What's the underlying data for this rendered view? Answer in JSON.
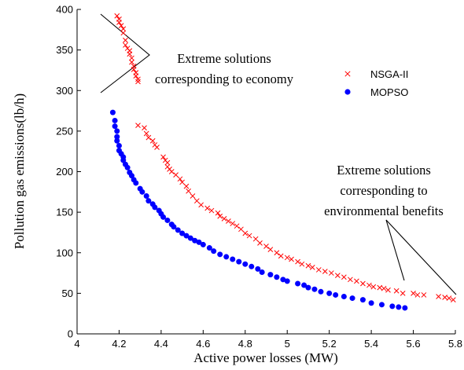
{
  "chart_data": {
    "type": "scatter",
    "xlabel": "Active power losses (MW)",
    "ylabel": "Pollution gas emissions(lb/h)",
    "xlim": [
      4,
      5.8
    ],
    "ylim": [
      0,
      400
    ],
    "xticks": [
      "4",
      "4.2",
      "4.4",
      "4.6",
      "4.8",
      "5",
      "5.2",
      "5.4",
      "5.6",
      "5.8"
    ],
    "yticks": [
      "0",
      "50",
      "100",
      "150",
      "200",
      "250",
      "300",
      "350",
      "400"
    ],
    "grid": false,
    "legend_position": "upper-right",
    "colors": {
      "nsga": "#ff0000",
      "mopso": "#0000ff"
    },
    "series": [
      {
        "name": "NSGA-II",
        "marker": "x",
        "color": "#ff0000",
        "points": [
          [
            4.19,
            392
          ],
          [
            4.2,
            388
          ],
          [
            4.2,
            384
          ],
          [
            4.21,
            380
          ],
          [
            4.22,
            376
          ],
          [
            4.22,
            371
          ],
          [
            4.23,
            362
          ],
          [
            4.23,
            356
          ],
          [
            4.24,
            352
          ],
          [
            4.25,
            349
          ],
          [
            4.25,
            345
          ],
          [
            4.26,
            340
          ],
          [
            4.26,
            335
          ],
          [
            4.27,
            330
          ],
          [
            4.27,
            326
          ],
          [
            4.28,
            322
          ],
          [
            4.28,
            318
          ],
          [
            4.29,
            314
          ],
          [
            4.29,
            311
          ],
          [
            4.29,
            257
          ],
          [
            4.32,
            254
          ],
          [
            4.33,
            247
          ],
          [
            4.34,
            242
          ],
          [
            4.36,
            238
          ],
          [
            4.37,
            233
          ],
          [
            4.38,
            230
          ],
          [
            4.41,
            218
          ],
          [
            4.42,
            214
          ],
          [
            4.43,
            211
          ],
          [
            4.43,
            206
          ],
          [
            4.44,
            203
          ],
          [
            4.45,
            200
          ],
          [
            4.47,
            196
          ],
          [
            4.49,
            191
          ],
          [
            4.5,
            187
          ],
          [
            4.52,
            182
          ],
          [
            4.53,
            176
          ],
          [
            4.55,
            170
          ],
          [
            4.57,
            164
          ],
          [
            4.59,
            159
          ],
          [
            4.62,
            155
          ],
          [
            4.64,
            152
          ],
          [
            4.67,
            149
          ],
          [
            4.68,
            145
          ],
          [
            4.7,
            142
          ],
          [
            4.72,
            139
          ],
          [
            4.74,
            136
          ],
          [
            4.76,
            133
          ],
          [
            4.78,
            129
          ],
          [
            4.8,
            124
          ],
          [
            4.82,
            121
          ],
          [
            4.85,
            117
          ],
          [
            4.87,
            112
          ],
          [
            4.9,
            108
          ],
          [
            4.92,
            104
          ],
          [
            4.95,
            100
          ],
          [
            4.97,
            96
          ],
          [
            5.0,
            94
          ],
          [
            5.02,
            92
          ],
          [
            5.05,
            89
          ],
          [
            5.07,
            86
          ],
          [
            5.1,
            84
          ],
          [
            5.12,
            82
          ],
          [
            5.15,
            79
          ],
          [
            5.18,
            77
          ],
          [
            5.21,
            75
          ],
          [
            5.24,
            72
          ],
          [
            5.27,
            70
          ],
          [
            5.3,
            67
          ],
          [
            5.33,
            65
          ],
          [
            5.36,
            62
          ],
          [
            5.39,
            60
          ],
          [
            5.41,
            58
          ],
          [
            5.44,
            57
          ],
          [
            5.46,
            56
          ],
          [
            5.48,
            54
          ],
          [
            5.52,
            53
          ],
          [
            5.55,
            50
          ],
          [
            5.6,
            50
          ],
          [
            5.62,
            48
          ],
          [
            5.65,
            48
          ],
          [
            5.72,
            46
          ],
          [
            5.75,
            45
          ],
          [
            5.77,
            44
          ],
          [
            5.79,
            42
          ]
        ]
      },
      {
        "name": "MOPSO",
        "marker": "circle",
        "color": "#0000ff",
        "points": [
          [
            4.17,
            273
          ],
          [
            4.18,
            263
          ],
          [
            4.18,
            256
          ],
          [
            4.19,
            250
          ],
          [
            4.19,
            243
          ],
          [
            4.19,
            238
          ],
          [
            4.2,
            232
          ],
          [
            4.2,
            226
          ],
          [
            4.21,
            222
          ],
          [
            4.22,
            218
          ],
          [
            4.22,
            214
          ],
          [
            4.23,
            209
          ],
          [
            4.24,
            205
          ],
          [
            4.25,
            199
          ],
          [
            4.26,
            195
          ],
          [
            4.27,
            190
          ],
          [
            4.28,
            186
          ],
          [
            4.3,
            179
          ],
          [
            4.31,
            175
          ],
          [
            4.33,
            170
          ],
          [
            4.34,
            164
          ],
          [
            4.36,
            160
          ],
          [
            4.37,
            156
          ],
          [
            4.39,
            152
          ],
          [
            4.4,
            148
          ],
          [
            4.41,
            144
          ],
          [
            4.43,
            140
          ],
          [
            4.45,
            135
          ],
          [
            4.46,
            132
          ],
          [
            4.48,
            128
          ],
          [
            4.5,
            124
          ],
          [
            4.52,
            121
          ],
          [
            4.54,
            118
          ],
          [
            4.56,
            115
          ],
          [
            4.58,
            113
          ],
          [
            4.6,
            110
          ],
          [
            4.63,
            106
          ],
          [
            4.65,
            102
          ],
          [
            4.68,
            98
          ],
          [
            4.71,
            95
          ],
          [
            4.74,
            92
          ],
          [
            4.77,
            89
          ],
          [
            4.8,
            86
          ],
          [
            4.83,
            83
          ],
          [
            4.86,
            80
          ],
          [
            4.88,
            76
          ],
          [
            4.92,
            73
          ],
          [
            4.95,
            70
          ],
          [
            4.98,
            67
          ],
          [
            5.0,
            65
          ],
          [
            5.05,
            62
          ],
          [
            5.08,
            60
          ],
          [
            5.1,
            57
          ],
          [
            5.13,
            55
          ],
          [
            5.16,
            52
          ],
          [
            5.2,
            50
          ],
          [
            5.23,
            48
          ],
          [
            5.27,
            46
          ],
          [
            5.31,
            44
          ],
          [
            5.36,
            42
          ],
          [
            5.4,
            38
          ],
          [
            5.45,
            36
          ],
          [
            5.5,
            34
          ],
          [
            5.53,
            33
          ],
          [
            5.56,
            32
          ]
        ]
      }
    ],
    "annotations": [
      {
        "lines": [
          "Extreme solutions",
          "corresponding to economy"
        ]
      },
      {
        "lines": [
          "Extreme solutions",
          "corresponding to",
          "environmental benefits"
        ]
      }
    ]
  }
}
